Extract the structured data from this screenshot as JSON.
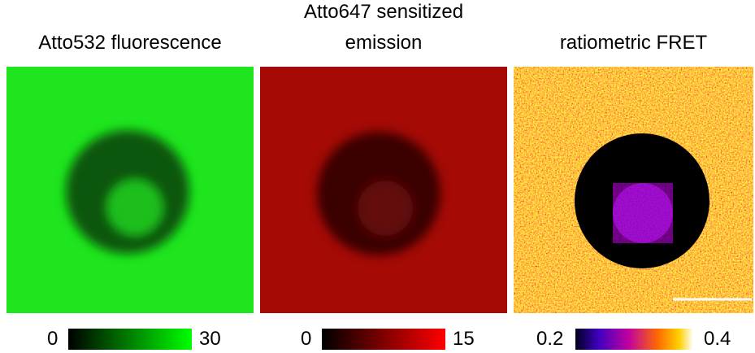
{
  "panels": [
    {
      "title": "Atto532 fluorescence",
      "colorbar": {
        "min": "0",
        "max": "30"
      }
    },
    {
      "title": "Atto647 sensitized emission",
      "colorbar": {
        "min": "0",
        "max": "15"
      }
    },
    {
      "title": "ratiometric FRET",
      "colorbar": {
        "min": "0.2",
        "max": "0.4"
      }
    }
  ]
}
